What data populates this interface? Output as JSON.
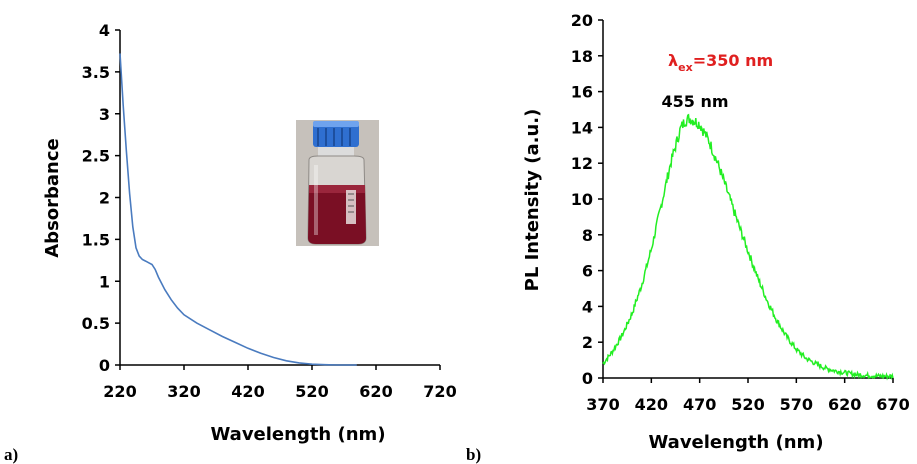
{
  "chart_data": [
    {
      "panel": "a)",
      "type": "line",
      "xlabel": "Wavelength (nm)",
      "ylabel": "Absorbance",
      "xlim": [
        220,
        720
      ],
      "ylim": [
        0,
        4
      ],
      "xticks": [
        "220",
        "320",
        "420",
        "520",
        "620",
        "720"
      ],
      "yticks": [
        "0",
        "0.5",
        "1",
        "1.5",
        "2",
        "2.5",
        "3",
        "3.5",
        "4"
      ],
      "line_color": "#4a7bbf",
      "grid": false,
      "inset": "photo of a glass bottle with blue cap containing dark red liquid",
      "series": [
        {
          "x": [
            220,
            225,
            230,
            235,
            240,
            245,
            250,
            255,
            260,
            265,
            270,
            275,
            280,
            290,
            300,
            310,
            320,
            340,
            360,
            380,
            400,
            420,
            440,
            460,
            480,
            500,
            520,
            540,
            560,
            580,
            590
          ],
          "values": [
            3.72,
            3.1,
            2.55,
            2.05,
            1.65,
            1.4,
            1.3,
            1.26,
            1.24,
            1.22,
            1.2,
            1.14,
            1.05,
            0.9,
            0.78,
            0.68,
            0.6,
            0.5,
            0.42,
            0.34,
            0.27,
            0.2,
            0.14,
            0.09,
            0.05,
            0.025,
            0.01,
            0.003,
            0.0,
            0.0,
            0.0
          ]
        }
      ]
    },
    {
      "panel": "b)",
      "type": "line",
      "xlabel": "Wavelength (nm)",
      "ylabel": "PL Intensity (a.u.)",
      "xlim": [
        370,
        670
      ],
      "ylim": [
        0,
        20
      ],
      "xticks": [
        "370",
        "420",
        "470",
        "520",
        "570",
        "620",
        "670"
      ],
      "yticks": [
        "0",
        "2",
        "4",
        "6",
        "8",
        "10",
        "12",
        "14",
        "16",
        "18",
        "20"
      ],
      "line_color": "#22ee22",
      "grid": false,
      "annotations": {
        "peak_label": "455 nm",
        "excitation_main": "λ",
        "excitation_sub": "ex",
        "excitation_rest": "=350 nm",
        "excitation_color": "#e02020"
      },
      "series": [
        {
          "x": [
            370,
            380,
            390,
            400,
            410,
            420,
            430,
            440,
            450,
            455,
            460,
            470,
            480,
            490,
            500,
            510,
            520,
            530,
            540,
            550,
            560,
            570,
            580,
            590,
            600,
            610,
            620,
            630,
            640,
            650,
            660,
            670
          ],
          "values": [
            0.8,
            1.5,
            2.4,
            3.6,
            5.2,
            7.2,
            9.6,
            12.0,
            13.9,
            14.4,
            14.5,
            14.2,
            13.2,
            11.8,
            10.2,
            8.6,
            7.1,
            5.6,
            4.3,
            3.2,
            2.3,
            1.6,
            1.1,
            0.8,
            0.55,
            0.4,
            0.3,
            0.2,
            0.15,
            0.12,
            0.1,
            0.1
          ]
        }
      ]
    }
  ]
}
